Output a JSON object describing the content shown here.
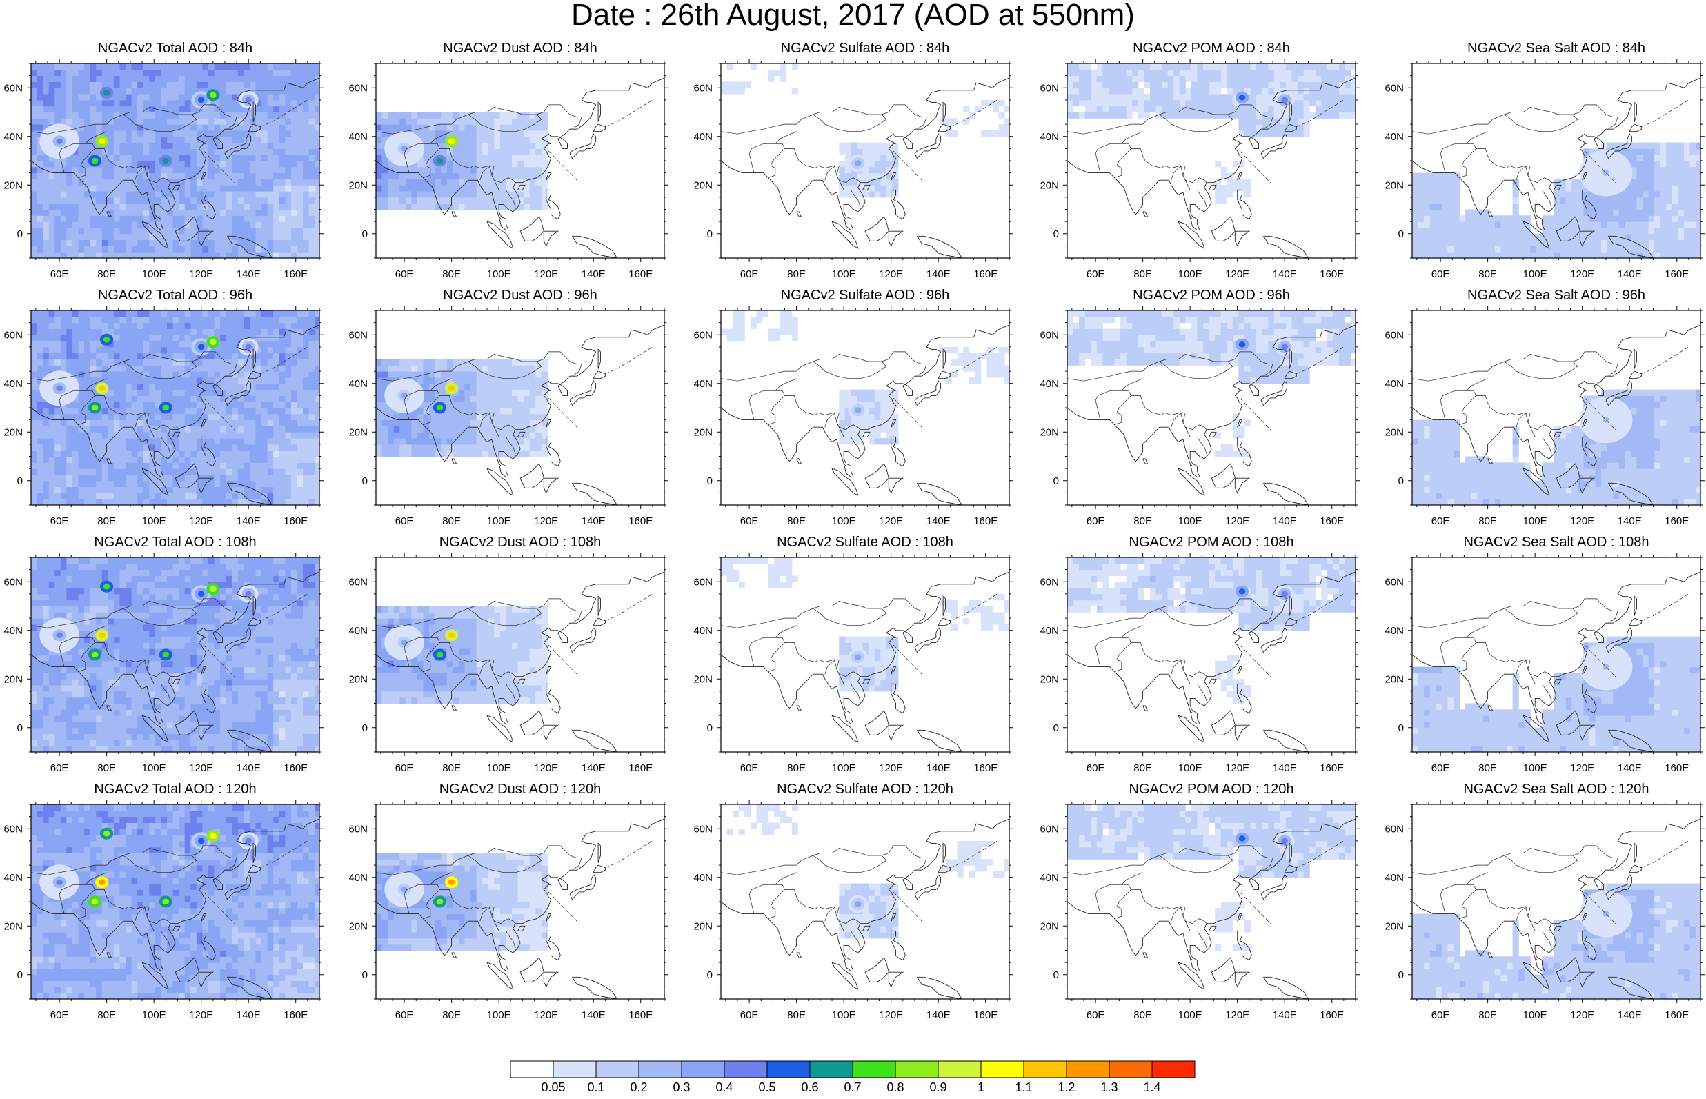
{
  "title": "Date : 26th August, 2017 (AOD at 550nm)",
  "lon_ticks": [
    "60E",
    "80E",
    "100E",
    "120E",
    "140E",
    "160E"
  ],
  "lat_ticks": [
    "60N",
    "40N",
    "20N",
    "0"
  ],
  "panels": [
    {
      "row": 0,
      "col": 0,
      "title": "NGACv2 Total AOD : 84h",
      "species": "total",
      "hour": 84
    },
    {
      "row": 0,
      "col": 1,
      "title": "NGACv2 Dust AOD : 84h",
      "species": "dust",
      "hour": 84
    },
    {
      "row": 0,
      "col": 2,
      "title": "NGACv2 Sulfate AOD : 84h",
      "species": "sulfate",
      "hour": 84
    },
    {
      "row": 0,
      "col": 3,
      "title": "NGACv2 POM AOD : 84h",
      "species": "pom",
      "hour": 84
    },
    {
      "row": 0,
      "col": 4,
      "title": "NGACv2 Sea Salt AOD : 84h",
      "species": "seasalt",
      "hour": 84
    },
    {
      "row": 1,
      "col": 0,
      "title": "NGACv2 Total AOD : 96h",
      "species": "total",
      "hour": 96
    },
    {
      "row": 1,
      "col": 1,
      "title": "NGACv2 Dust AOD : 96h",
      "species": "dust",
      "hour": 96
    },
    {
      "row": 1,
      "col": 2,
      "title": "NGACv2 Sulfate AOD : 96h",
      "species": "sulfate",
      "hour": 96
    },
    {
      "row": 1,
      "col": 3,
      "title": "NGACv2 POM AOD : 96h",
      "species": "pom",
      "hour": 96
    },
    {
      "row": 1,
      "col": 4,
      "title": "NGACv2 Sea Salt AOD : 96h",
      "species": "seasalt",
      "hour": 96
    },
    {
      "row": 2,
      "col": 0,
      "title": "NGACv2 Total AOD : 108h",
      "species": "total",
      "hour": 108
    },
    {
      "row": 2,
      "col": 1,
      "title": "NGACv2 Dust AOD : 108h",
      "species": "dust",
      "hour": 108
    },
    {
      "row": 2,
      "col": 2,
      "title": "NGACv2 Sulfate AOD : 108h",
      "species": "sulfate",
      "hour": 108
    },
    {
      "row": 2,
      "col": 3,
      "title": "NGACv2 POM AOD : 108h",
      "species": "pom",
      "hour": 108
    },
    {
      "row": 2,
      "col": 4,
      "title": "NGACv2 Sea Salt AOD : 108h",
      "species": "seasalt",
      "hour": 108
    },
    {
      "row": 3,
      "col": 0,
      "title": "NGACv2 Total AOD : 120h",
      "species": "total",
      "hour": 120
    },
    {
      "row": 3,
      "col": 1,
      "title": "NGACv2 Dust AOD : 120h",
      "species": "dust",
      "hour": 120
    },
    {
      "row": 3,
      "col": 2,
      "title": "NGACv2 Sulfate AOD : 120h",
      "species": "sulfate",
      "hour": 120
    },
    {
      "row": 3,
      "col": 3,
      "title": "NGACv2 POM AOD : 120h",
      "species": "pom",
      "hour": 120
    },
    {
      "row": 3,
      "col": 4,
      "title": "NGACv2 Sea Salt  AOD : 120h",
      "species": "seasalt",
      "hour": 120
    }
  ],
  "colorbar": {
    "labels": [
      "0.05",
      "0.1",
      "0.2",
      "0.3",
      "0.4",
      "0.5",
      "0.6",
      "0.7",
      "0.8",
      "0.9",
      "1",
      "1.1",
      "1.2",
      "1.3",
      "1.4"
    ],
    "colors": [
      "#ffffff",
      "#d8e2fb",
      "#bccdf8",
      "#a3b9f6",
      "#8aa5f3",
      "#6d80ee",
      "#1c5ee6",
      "#0e9a8f",
      "#3ee21b",
      "#8fec1c",
      "#cff53a",
      "#ffff00",
      "#ffc600",
      "#ff9800",
      "#ff6b00",
      "#ff2a00"
    ]
  },
  "features": {
    "total": [
      {
        "lon": 75,
        "lat": 30,
        "level": 8,
        "r": 2
      },
      {
        "lon": 105,
        "lat": 30,
        "level": 7,
        "r": 2
      },
      {
        "lon": 120,
        "lat": 55,
        "level": 6,
        "r": 3
      },
      {
        "lon": 140,
        "lat": 55,
        "level": 5,
        "r": 3
      },
      {
        "lon": 60,
        "lat": 38,
        "level": 5,
        "r": 6
      },
      {
        "lon": 78,
        "lat": 38,
        "level": 11,
        "r": 2
      },
      {
        "lon": 80,
        "lat": 58,
        "level": 7,
        "r": 2
      },
      {
        "lon": 125,
        "lat": 57,
        "level": 9,
        "r": 2
      }
    ],
    "dust": [
      {
        "lon": 75,
        "lat": 30,
        "level": 7,
        "r": 2
      },
      {
        "lon": 60,
        "lat": 35,
        "level": 4,
        "r": 6
      },
      {
        "lon": 80,
        "lat": 38,
        "level": 11,
        "r": 2
      }
    ],
    "sulfate": [
      {
        "lon": 106,
        "lat": 29,
        "level": 4,
        "r": 3
      }
    ],
    "pom": [
      {
        "lon": 122,
        "lat": 56,
        "level": 6,
        "r": 2
      },
      {
        "lon": 140,
        "lat": 55,
        "level": 5,
        "r": 3
      }
    ],
    "seasalt": [
      {
        "lon": 130,
        "lat": 25,
        "level": 3,
        "r": 8
      }
    ]
  }
}
